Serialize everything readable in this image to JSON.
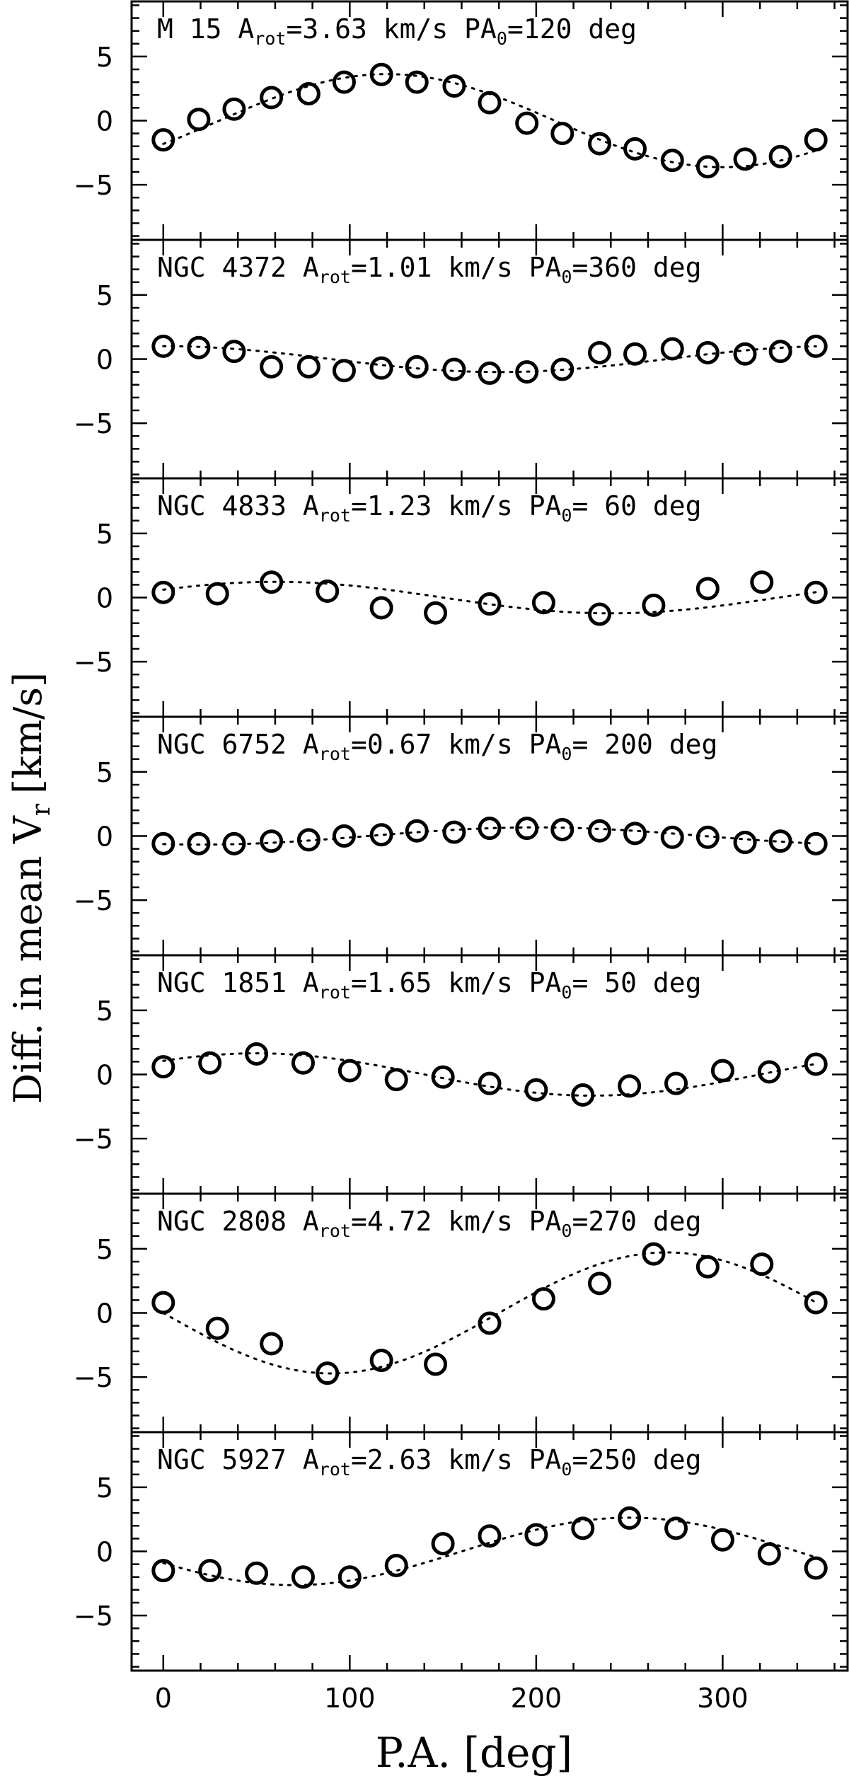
{
  "chart_data": {
    "type": "scatter",
    "xlabel": "P.A. [deg]",
    "ylabel_parts": {
      "main": "Diff. in mean V",
      "sub": "r",
      "unit": "[km/s]"
    },
    "xlim": [
      -17,
      367
    ],
    "ylim": [
      -9.3,
      9.3
    ],
    "x_ticks": [
      0,
      100,
      200,
      300
    ],
    "y_ticks": [
      5,
      0,
      -5
    ],
    "x_minor_step": 20,
    "y_minor_step": 1,
    "marker": "open-circle",
    "model_line": "dotted",
    "panels": [
      {
        "name": "M 15",
        "a_label": "A",
        "a_sub": "rot",
        "a_value": "=3.63 km/s",
        "pa_label": "PA",
        "pa_sub": "0",
        "pa_value": "=120 deg",
        "amplitude": 3.63,
        "pa0": 120,
        "points": [
          [
            0,
            -1.5
          ],
          [
            19,
            0.1
          ],
          [
            38,
            0.9
          ],
          [
            58,
            1.8
          ],
          [
            78,
            2.1
          ],
          [
            97,
            3.0
          ],
          [
            117,
            3.6
          ],
          [
            136,
            3.0
          ],
          [
            156,
            2.7
          ],
          [
            175,
            1.4
          ],
          [
            195,
            -0.2
          ],
          [
            214,
            -1.0
          ],
          [
            234,
            -1.8
          ],
          [
            253,
            -2.2
          ],
          [
            273,
            -3.1
          ],
          [
            292,
            -3.6
          ],
          [
            312,
            -3.0
          ],
          [
            331,
            -2.8
          ],
          [
            350,
            -1.5
          ]
        ]
      },
      {
        "name": "NGC 4372",
        "a_label": "A",
        "a_sub": "rot",
        "a_value": "=1.01 km/s",
        "pa_label": "PA",
        "pa_sub": "0",
        "pa_value": "=360 deg",
        "amplitude": 1.01,
        "pa0": 360,
        "points": [
          [
            0,
            1.0
          ],
          [
            19,
            0.9
          ],
          [
            38,
            0.6
          ],
          [
            58,
            -0.6
          ],
          [
            78,
            -0.6
          ],
          [
            97,
            -0.9
          ],
          [
            117,
            -0.7
          ],
          [
            136,
            -0.6
          ],
          [
            156,
            -0.8
          ],
          [
            175,
            -1.1
          ],
          [
            195,
            -1.0
          ],
          [
            214,
            -0.8
          ],
          [
            234,
            0.5
          ],
          [
            253,
            0.4
          ],
          [
            273,
            0.8
          ],
          [
            292,
            0.5
          ],
          [
            312,
            0.4
          ],
          [
            331,
            0.6
          ],
          [
            350,
            1.0
          ]
        ]
      },
      {
        "name": "NGC 4833",
        "a_label": "A",
        "a_sub": "rot",
        "a_value": "=1.23 km/s",
        "pa_label": "PA",
        "pa_sub": "0",
        "pa_value": "= 60 deg",
        "amplitude": 1.23,
        "pa0": 60,
        "points": [
          [
            0,
            0.4
          ],
          [
            29,
            0.3
          ],
          [
            58,
            1.2
          ],
          [
            88,
            0.5
          ],
          [
            117,
            -0.8
          ],
          [
            146,
            -1.2
          ],
          [
            175,
            -0.5
          ],
          [
            204,
            -0.4
          ],
          [
            234,
            -1.3
          ],
          [
            263,
            -0.6
          ],
          [
            292,
            0.7
          ],
          [
            321,
            1.2
          ],
          [
            350,
            0.4
          ]
        ]
      },
      {
        "name": "NGC 6752",
        "a_label": "A",
        "a_sub": "rot",
        "a_value": "=0.67 km/s",
        "pa_label": "PA",
        "pa_sub": "0",
        "pa_value": "= 200 deg",
        "amplitude": 0.67,
        "pa0": 200,
        "points": [
          [
            0,
            -0.6
          ],
          [
            19,
            -0.6
          ],
          [
            38,
            -0.6
          ],
          [
            58,
            -0.4
          ],
          [
            78,
            -0.3
          ],
          [
            97,
            0.0
          ],
          [
            117,
            0.1
          ],
          [
            136,
            0.4
          ],
          [
            156,
            0.3
          ],
          [
            175,
            0.6
          ],
          [
            195,
            0.6
          ],
          [
            214,
            0.5
          ],
          [
            234,
            0.4
          ],
          [
            253,
            0.2
          ],
          [
            273,
            -0.1
          ],
          [
            292,
            -0.1
          ],
          [
            312,
            -0.5
          ],
          [
            331,
            -0.4
          ],
          [
            350,
            -0.6
          ]
        ]
      },
      {
        "name": "NGC 1851",
        "a_label": "A",
        "a_sub": "rot",
        "a_value": "=1.65 km/s",
        "pa_label": "PA",
        "pa_sub": "0",
        "pa_value": "= 50 deg",
        "amplitude": 1.65,
        "pa0": 50,
        "points": [
          [
            0,
            0.6
          ],
          [
            25,
            0.9
          ],
          [
            50,
            1.6
          ],
          [
            75,
            0.9
          ],
          [
            100,
            0.3
          ],
          [
            125,
            -0.4
          ],
          [
            150,
            -0.2
          ],
          [
            175,
            -0.7
          ],
          [
            200,
            -1.2
          ],
          [
            225,
            -1.6
          ],
          [
            250,
            -0.9
          ],
          [
            275,
            -0.7
          ],
          [
            300,
            0.3
          ],
          [
            325,
            0.2
          ],
          [
            350,
            0.8
          ]
        ]
      },
      {
        "name": "NGC 2808",
        "a_label": "A",
        "a_sub": "rot",
        "a_value": "=4.72 km/s",
        "pa_label": "PA",
        "pa_sub": "0",
        "pa_value": "=270 deg",
        "amplitude": 4.72,
        "pa0": 270,
        "points": [
          [
            0,
            0.8
          ],
          [
            29,
            -1.2
          ],
          [
            58,
            -2.4
          ],
          [
            88,
            -4.7
          ],
          [
            117,
            -3.7
          ],
          [
            146,
            -4.0
          ],
          [
            175,
            -0.8
          ],
          [
            204,
            1.1
          ],
          [
            234,
            2.3
          ],
          [
            263,
            4.6
          ],
          [
            292,
            3.6
          ],
          [
            321,
            3.8
          ],
          [
            350,
            0.8
          ]
        ]
      },
      {
        "name": "NGC 5927",
        "a_label": "A",
        "a_sub": "rot",
        "a_value": "=2.63 km/s",
        "pa_label": "PA",
        "pa_sub": "0",
        "pa_value": "=250 deg",
        "amplitude": 2.63,
        "pa0": 250,
        "points": [
          [
            0,
            -1.5
          ],
          [
            25,
            -1.5
          ],
          [
            50,
            -1.7
          ],
          [
            75,
            -2.0
          ],
          [
            100,
            -2.0
          ],
          [
            125,
            -1.1
          ],
          [
            150,
            0.6
          ],
          [
            175,
            1.2
          ],
          [
            200,
            1.3
          ],
          [
            225,
            1.8
          ],
          [
            250,
            2.6
          ],
          [
            275,
            1.8
          ],
          [
            300,
            0.9
          ],
          [
            325,
            -0.2
          ],
          [
            350,
            -1.3
          ]
        ]
      }
    ]
  }
}
